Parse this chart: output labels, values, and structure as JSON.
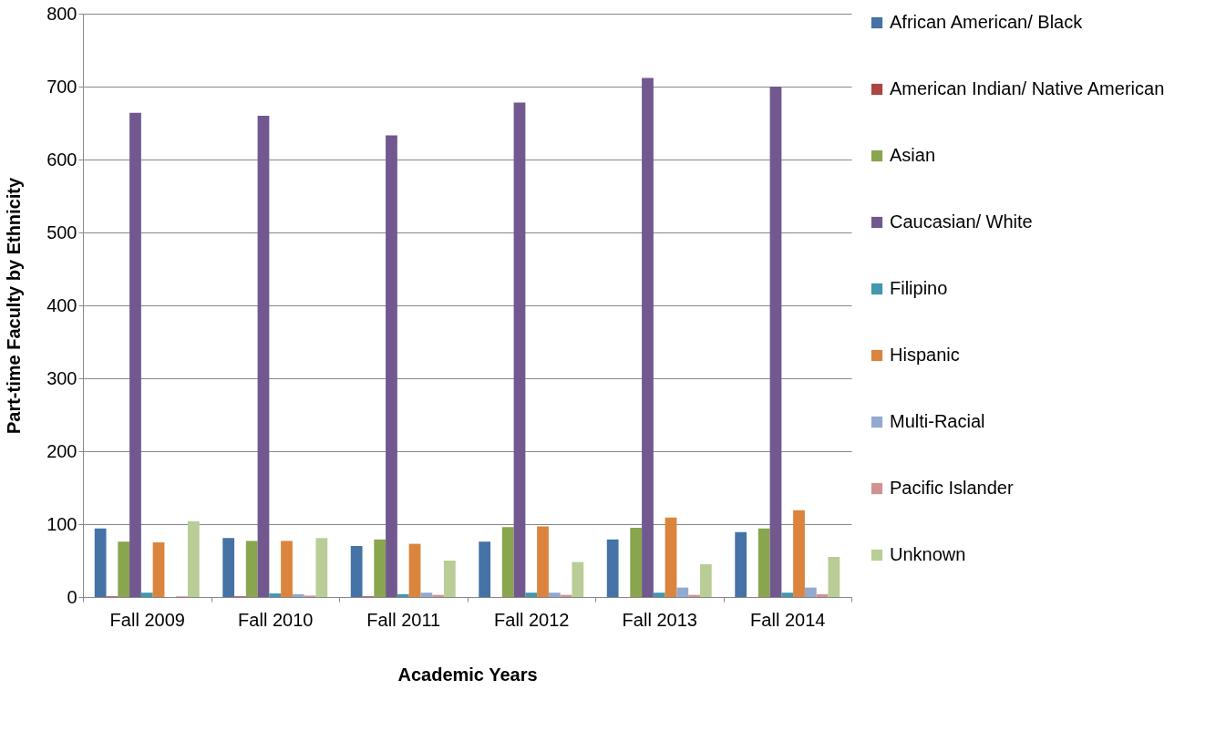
{
  "chart_data": {
    "type": "bar",
    "xlabel": "Academic Years",
    "ylabel": "Part-time Faculty by Ethnicity",
    "categories": [
      "Fall 2009",
      "Fall 2010",
      "Fall 2011",
      "Fall 2012",
      "Fall 2013",
      "Fall 2014"
    ],
    "series": [
      {
        "name": "African American/ Black",
        "color": "#4572a7",
        "values": [
          94,
          81,
          70,
          76,
          79,
          89
        ]
      },
      {
        "name": "American Indian/ Native American",
        "color": "#aa4643",
        "values": [
          1,
          1,
          1,
          0,
          0,
          0
        ]
      },
      {
        "name": "Asian",
        "color": "#89a54e",
        "values": [
          76,
          77,
          79,
          96,
          95,
          94
        ]
      },
      {
        "name": "Caucasian/ White",
        "color": "#71588f",
        "values": [
          664,
          660,
          633,
          678,
          712,
          700
        ]
      },
      {
        "name": "Filipino",
        "color": "#4198af",
        "values": [
          6,
          5,
          4,
          6,
          6,
          6
        ]
      },
      {
        "name": "Hispanic",
        "color": "#db843d",
        "values": [
          75,
          77,
          73,
          97,
          109,
          119
        ]
      },
      {
        "name": "Multi-Racial",
        "color": "#93a9cf",
        "values": [
          0,
          4,
          6,
          6,
          13,
          13
        ]
      },
      {
        "name": "Pacific Islander",
        "color": "#d19392",
        "values": [
          1,
          2,
          3,
          3,
          3,
          4
        ]
      },
      {
        "name": "Unknown",
        "color": "#b9cd96",
        "values": [
          104,
          81,
          50,
          48,
          45,
          55
        ]
      }
    ],
    "ylim": [
      0,
      800
    ],
    "yticks": [
      0,
      100,
      200,
      300,
      400,
      500,
      600,
      700,
      800
    ],
    "grid": "y",
    "legend": "right"
  }
}
